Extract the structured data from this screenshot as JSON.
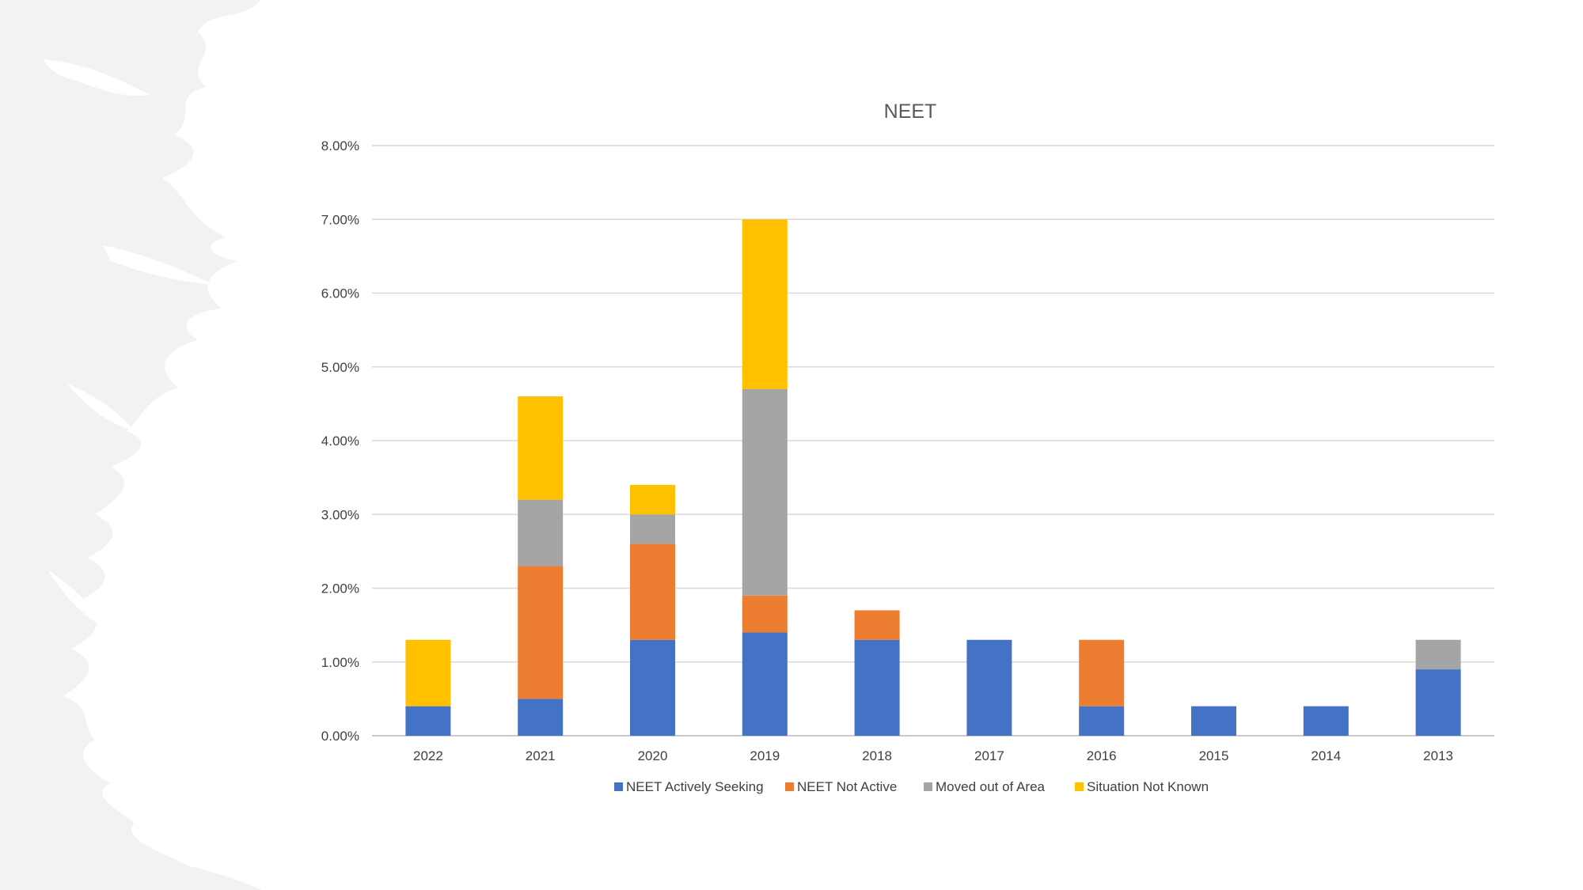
{
  "chart_data": {
    "type": "bar",
    "stacked": true,
    "title": "NEET",
    "xlabel": "",
    "ylabel": "",
    "categories": [
      "2022",
      "2021",
      "2020",
      "2019",
      "2018",
      "2017",
      "2016",
      "2015",
      "2014",
      "2013"
    ],
    "ylim": [
      0,
      8
    ],
    "yticks": [
      "0.00%",
      "1.00%",
      "2.00%",
      "3.00%",
      "4.00%",
      "5.00%",
      "6.00%",
      "7.00%",
      "8.00%"
    ],
    "grid": true,
    "legend_position": "bottom",
    "series": [
      {
        "name": "NEET Actively Seeking",
        "color": "#4472C4",
        "values": [
          0.4,
          0.5,
          1.3,
          1.4,
          1.3,
          1.3,
          0.4,
          0.4,
          0.4,
          0.9
        ]
      },
      {
        "name": "NEET Not Active",
        "color": "#ED7D31",
        "values": [
          0,
          1.8,
          1.3,
          0.5,
          0.4,
          0,
          0.9,
          0,
          0,
          0
        ]
      },
      {
        "name": "Moved out of Area",
        "color": "#A5A5A5",
        "values": [
          0,
          0.9,
          0.4,
          2.8,
          0,
          0,
          0,
          0,
          0,
          0.4
        ]
      },
      {
        "name": "Situation Not Known",
        "color": "#FFC000",
        "values": [
          0.9,
          1.4,
          0.4,
          2.3,
          0,
          0,
          0,
          0,
          0,
          0
        ]
      }
    ]
  }
}
